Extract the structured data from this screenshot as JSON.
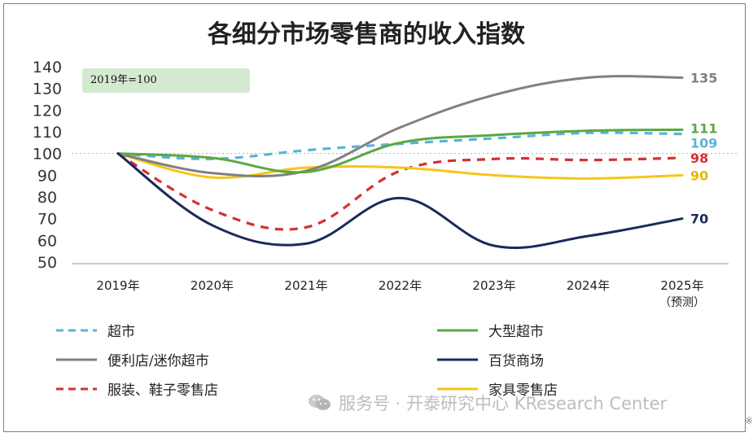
{
  "chart_data": {
    "type": "line",
    "title": "各细分市场零售商的收入指数",
    "annotation": "2019年=100",
    "x": [
      "2019年",
      "2020年",
      "2021年",
      "2022年",
      "2023年",
      "2024年",
      "2025年"
    ],
    "x_sublabel_last": "（预测）",
    "ylim": [
      50,
      140
    ],
    "yticks": [
      50,
      60,
      70,
      80,
      90,
      100,
      110,
      120,
      130,
      140
    ],
    "reference_line": 100,
    "grid": false,
    "legend_position": "bottom",
    "series": [
      {
        "name": "超市",
        "color": "#5ab4d6",
        "dash": "dashed",
        "values": [
          100,
          97.5,
          101.5,
          104.5,
          107,
          109.5,
          109
        ],
        "end_label": "109"
      },
      {
        "name": "大型超市",
        "color": "#5aa843",
        "dash": "solid",
        "values": [
          100,
          98,
          91.5,
          105,
          108.5,
          110.5,
          111
        ],
        "end_label": "111"
      },
      {
        "name": "便利店/迷你超市",
        "color": "#808080",
        "dash": "solid",
        "values": [
          100,
          91,
          92,
          112,
          127,
          135,
          135
        ],
        "end_label": "135"
      },
      {
        "name": "百货商场",
        "color": "#1a2a5c",
        "dash": "solid",
        "values": [
          100,
          67,
          58.5,
          79.5,
          57.5,
          62,
          70
        ],
        "end_label": "70"
      },
      {
        "name": "服装、鞋子零售店",
        "color": "#d63031",
        "dash": "dashed",
        "values": [
          100,
          74,
          66,
          92,
          97.5,
          97,
          98
        ],
        "end_label": "98"
      },
      {
        "name": "家具零售店",
        "color": "#f5c518",
        "dash": "solid",
        "values": [
          100,
          89,
          93.5,
          93.5,
          90,
          88.5,
          90
        ],
        "end_label": "90"
      }
    ]
  },
  "watermark": {
    "text": "服务号 · 开泰研究中心 KResearch Center",
    "icon": "wechat-icon"
  },
  "corner_glyph": "※"
}
